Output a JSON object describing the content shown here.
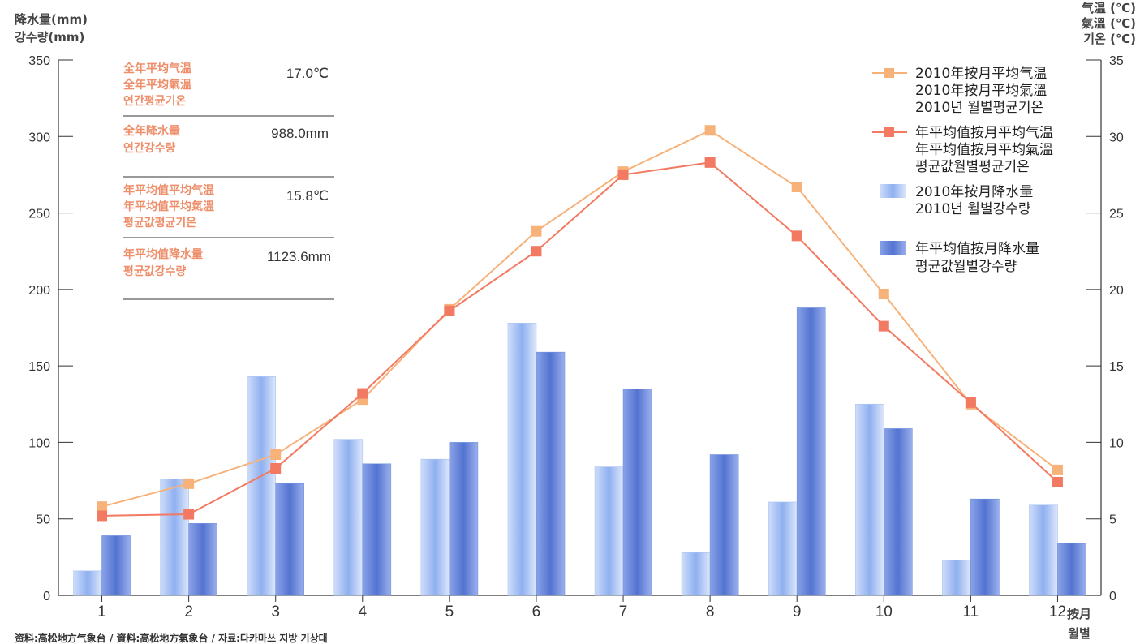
{
  "left_axis_title": [
    "降水量(mm)",
    "강수량(mm)"
  ],
  "right_axis_title": [
    "气温 (℃)",
    "氣溫 (℃)",
    "기온 (℃)"
  ],
  "x_axis_title": [
    "按月",
    "월별"
  ],
  "source": "资料:高松地方气象台 / 資料:高松地方氣象台 / 자료:다카마쓰 지방 기상대",
  "summary": [
    {
      "labels": [
        "全年平均气温",
        "全年平均氣溫",
        "연간평균기온"
      ],
      "value": "17.0℃"
    },
    {
      "labels": [
        "全年降水量",
        "연간강수량"
      ],
      "value": "988.0mm"
    },
    {
      "labels": [
        "年平均值平均气温",
        "年平均值平均氣溫",
        "평균값평균기온"
      ],
      "value": "15.8℃"
    },
    {
      "labels": [
        "年平均值降水量",
        "평균값강수량"
      ],
      "value": "1123.6mm"
    }
  ],
  "legend": [
    {
      "kind": "line",
      "color": "#f7b27a",
      "lines": [
        "2010年按月平均气温",
        "2010年按月平均氣溫",
        "2010년 월별평균기온"
      ]
    },
    {
      "kind": "line",
      "color": "#f27a62",
      "lines": [
        "年平均值按月平均气温",
        "年平均值按月平均氣溫",
        "평균값월별평균기온"
      ]
    },
    {
      "kind": "bar",
      "color": "#a9c4f3",
      "lines": [
        "2010年按月降水量",
        "2010년 월별강수량"
      ]
    },
    {
      "kind": "bar",
      "color": "#6f8fe0",
      "lines": [
        "年平均值按月降水量",
        "평균값월별강수량"
      ]
    }
  ],
  "colors": {
    "temp_2010": "#f7b27a",
    "temp_avg": "#f27a62",
    "rain_2010": "#a9c4f3",
    "rain_avg": "#6f8fe0"
  },
  "chart_data": {
    "type": "bar",
    "categories": [
      "1",
      "2",
      "3",
      "4",
      "5",
      "6",
      "7",
      "8",
      "9",
      "10",
      "11",
      "12"
    ],
    "y_left_ticks": [
      "0",
      "50",
      "100",
      "150",
      "200",
      "250",
      "300",
      "350"
    ],
    "y_right_ticks": [
      "0",
      "5",
      "10",
      "15",
      "20",
      "25",
      "30",
      "35"
    ],
    "ylim_left": [
      0,
      350
    ],
    "ylim_right": [
      0,
      35
    ],
    "series": [
      {
        "name": "2010年按月降水量",
        "type": "bar",
        "axis": "left",
        "values": [
          16,
          76,
          143,
          102,
          89,
          178,
          84,
          28,
          61,
          125,
          23,
          59
        ]
      },
      {
        "name": "年平均值按月降水量",
        "type": "bar",
        "axis": "left",
        "values": [
          39,
          47,
          73,
          86,
          100,
          159,
          135,
          92,
          188,
          109,
          63,
          34
        ]
      },
      {
        "name": "2010年按月平均气温",
        "type": "line",
        "axis": "right",
        "values": [
          5.8,
          7.3,
          9.2,
          12.8,
          18.7,
          23.8,
          27.7,
          30.4,
          26.7,
          19.7,
          12.5,
          8.2
        ]
      },
      {
        "name": "年平均值按月平均气温",
        "type": "line",
        "axis": "right",
        "values": [
          5.2,
          5.3,
          8.3,
          13.2,
          18.6,
          22.5,
          27.5,
          28.3,
          23.5,
          17.6,
          12.6,
          7.4
        ]
      }
    ]
  }
}
